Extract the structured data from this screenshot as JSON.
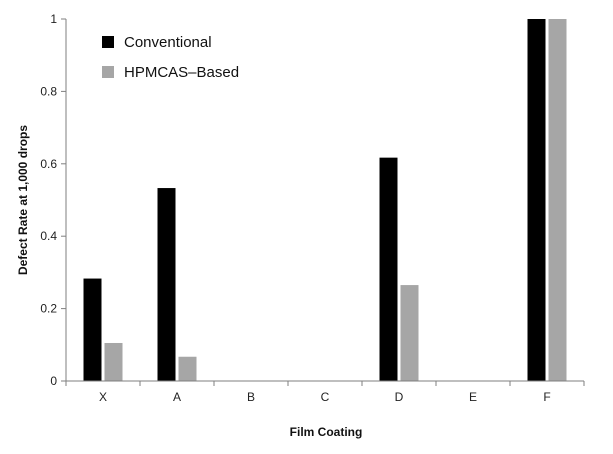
{
  "chart_data": {
    "type": "bar",
    "categories": [
      "X",
      "A",
      "B",
      "C",
      "D",
      "E",
      "F"
    ],
    "series": [
      {
        "name": "Conventional",
        "values": [
          0.283,
          0.533,
          0,
          0,
          0.617,
          0,
          1.0
        ],
        "color": "#000000"
      },
      {
        "name": "HPMCAS–Based",
        "values": [
          0.105,
          0.067,
          0,
          0,
          0.265,
          0,
          1.0
        ],
        "color": "#a6a6a6"
      }
    ],
    "yticks": [
      "0",
      "0.2",
      "0.4",
      "0.6",
      "0.8",
      "1"
    ],
    "ylim": [
      0,
      1
    ],
    "xlabel": "Film Coating",
    "ylabel": "Defect Rate at 1,000 drops",
    "legend_position": "top-left",
    "grid": false
  }
}
